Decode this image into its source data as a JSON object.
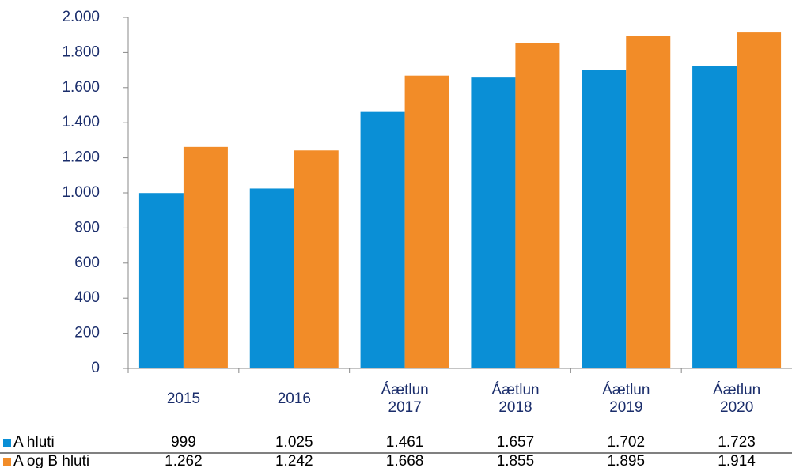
{
  "chart_data": {
    "type": "bar",
    "categories": [
      "2015",
      "2016",
      "Áætlun\n2017",
      "Áætlun\n2018",
      "Áætlun\n2019",
      "Áætlun\n2020"
    ],
    "series": [
      {
        "name": "A hluti",
        "color": "#0a8fd6",
        "values": [
          999,
          1025,
          1461,
          1657,
          1702,
          1723
        ],
        "value_labels": [
          "999",
          "1.025",
          "1.461",
          "1.657",
          "1.702",
          "1.723"
        ]
      },
      {
        "name": "A og B hluti",
        "color": "#f28c28",
        "values": [
          1262,
          1242,
          1668,
          1855,
          1895,
          1914
        ],
        "value_labels": [
          "1.262",
          "1.242",
          "1.668",
          "1.855",
          "1.895",
          "1.914"
        ]
      }
    ],
    "ylim": [
      0,
      2000
    ],
    "yticks": [
      0,
      200,
      400,
      600,
      800,
      {
        "value": 1000,
        "label": "1.000"
      },
      {
        "value": 1200,
        "label": "1.200"
      },
      {
        "value": 1400,
        "label": "1.400"
      },
      {
        "value": 1600,
        "label": "1.600"
      },
      {
        "value": 1800,
        "label": "1.800"
      },
      {
        "value": 2000,
        "label": "2.000"
      }
    ],
    "grid": false
  }
}
